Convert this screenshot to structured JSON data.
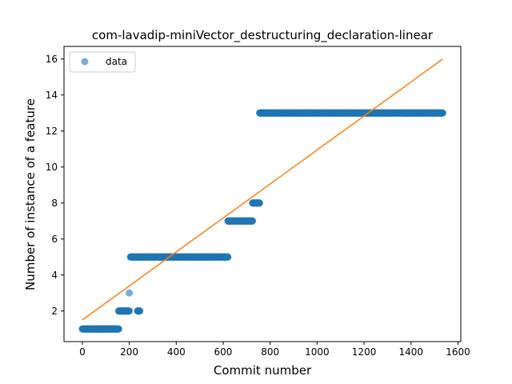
{
  "chart_data": {
    "type": "scatter",
    "title": "com-lavadip-miniVector_destructuring_declaration-linear",
    "xlabel": "Commit number",
    "ylabel": "Number of instance of a feature",
    "xlim": [
      -78,
      1612
    ],
    "ylim": [
      0.3,
      16.7
    ],
    "xticks": [
      0,
      200,
      400,
      600,
      800,
      1000,
      1200,
      1400,
      1600
    ],
    "yticks": [
      2,
      4,
      6,
      8,
      10,
      12,
      14,
      16
    ],
    "grid": false,
    "legend": {
      "placement": "top-left",
      "entries": [
        "data"
      ]
    },
    "colors": {
      "data": "#1f77b4",
      "fit": "#ff7f0e"
    },
    "series": [
      {
        "name": "data",
        "kind": "scatter",
        "segments": [
          {
            "x_start": 0,
            "x_end": 155,
            "y": 1
          },
          {
            "x_start": 155,
            "x_end": 200,
            "y": 2
          },
          {
            "x_start": 200,
            "x_end": 200,
            "y": 3
          },
          {
            "x_start": 205,
            "x_end": 225,
            "y": 5
          },
          {
            "x_start": 235,
            "x_end": 245,
            "y": 2
          },
          {
            "x_start": 228,
            "x_end": 620,
            "y": 5
          },
          {
            "x_start": 620,
            "x_end": 725,
            "y": 7
          },
          {
            "x_start": 725,
            "x_end": 755,
            "y": 8
          },
          {
            "x_start": 755,
            "x_end": 1535,
            "y": 13
          }
        ]
      },
      {
        "name": "",
        "kind": "line",
        "x": [
          0,
          1535
        ],
        "y": [
          1.5,
          16
        ]
      }
    ]
  }
}
